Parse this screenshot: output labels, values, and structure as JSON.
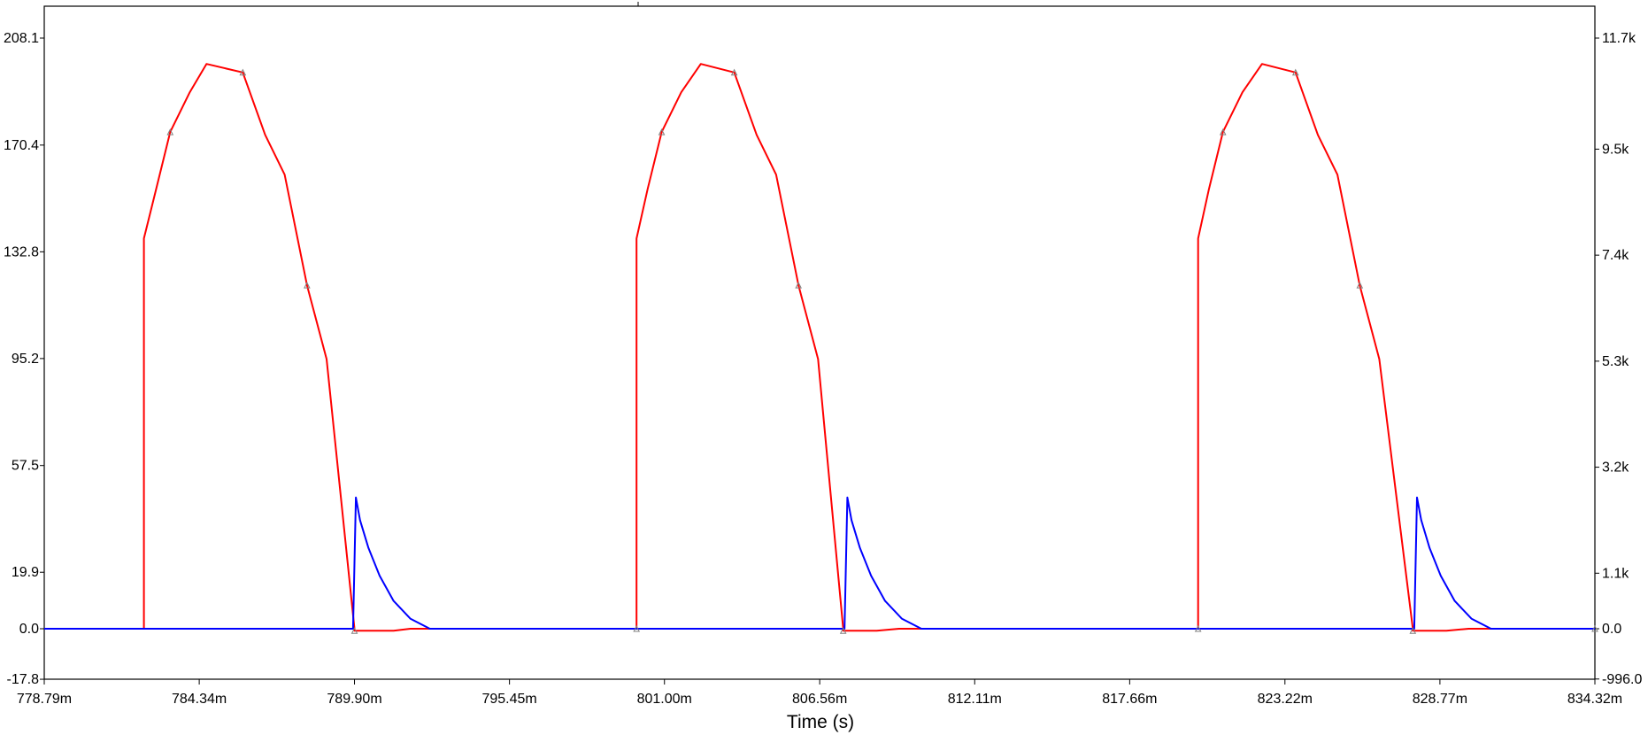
{
  "chart_data": {
    "type": "line",
    "xlabel": "Time (s)",
    "x_ticks": [
      "778.79m",
      "784.34m",
      "789.90m",
      "795.45m",
      "801.00m",
      "806.56m",
      "812.11m",
      "817.66m",
      "823.22m",
      "828.77m",
      "834.32m"
    ],
    "x_tick_values": [
      778.79,
      784.34,
      789.9,
      795.45,
      801.0,
      806.56,
      812.11,
      817.66,
      823.22,
      828.77,
      834.32
    ],
    "xlim": [
      778.79,
      834.32
    ],
    "x_unit": "ms",
    "left_axis": {
      "ticks": [
        "208.1",
        "170.4",
        "132.8",
        "95.2",
        "57.5",
        "19.9",
        "0.0",
        "-17.8"
      ],
      "tick_values": [
        208.1,
        170.4,
        132.8,
        95.2,
        57.5,
        19.9,
        0.0,
        -17.8
      ],
      "ylim": [
        -17.8,
        208.1
      ]
    },
    "right_axis": {
      "ticks": [
        "11.7k",
        "9.5k",
        "7.4k",
        "5.3k",
        "3.2k",
        "1.1k",
        "0.0",
        "-996.0"
      ],
      "tick_values": [
        11700,
        9500,
        7400,
        5300,
        3200,
        1100,
        0,
        -996
      ],
      "ylim": [
        -996,
        11700
      ]
    },
    "grid": false,
    "legend": "none",
    "series": [
      {
        "color": "#ff0000",
        "axis": "left",
        "x": [
          778.79,
          782.36,
          782.36,
          782.8,
          783.3,
          784.0,
          784.6,
          785.9,
          786.7,
          787.4,
          788.2,
          788.9,
          789.9,
          789.9,
          791.3,
          791.9,
          800.0,
          800.0,
          800.4,
          800.9,
          801.6,
          802.3,
          803.5,
          804.3,
          805.0,
          805.8,
          806.5,
          807.4,
          807.4,
          808.6,
          809.4,
          820.11,
          820.11,
          820.5,
          821.0,
          821.7,
          822.4,
          823.6,
          824.4,
          825.1,
          825.9,
          826.6,
          827.8,
          827.8,
          829.0,
          829.8,
          834.32
        ],
        "y": [
          0,
          0,
          137.5,
          155.0,
          175.0,
          189.0,
          199.0,
          196.0,
          174.0,
          160.0,
          121.0,
          95.0,
          0,
          -0.7,
          -0.7,
          0,
          0,
          137.5,
          155.0,
          175.0,
          189.0,
          199.0,
          196.0,
          174.0,
          160.0,
          121.0,
          95.0,
          0,
          -0.7,
          -0.7,
          0,
          0,
          137.5,
          155.0,
          175.0,
          189.0,
          199.0,
          196.0,
          174.0,
          160.0,
          121.0,
          95.0,
          0,
          -0.7,
          -0.7,
          0,
          0
        ]
      },
      {
        "color": "#0000ff",
        "axis": "right",
        "x": [
          778.79,
          789.85,
          789.95,
          790.1,
          790.4,
          790.8,
          791.3,
          791.9,
          792.6,
          800.0,
          807.45,
          807.55,
          807.7,
          808.0,
          808.4,
          808.9,
          809.5,
          810.2,
          820.0,
          827.85,
          827.95,
          828.1,
          828.4,
          828.8,
          829.3,
          829.9,
          830.6,
          834.32
        ],
        "y": [
          0,
          0,
          2600,
          2150,
          1600,
          1050,
          550,
          200,
          0,
          0,
          0,
          2600,
          2150,
          1600,
          1050,
          550,
          200,
          0,
          0,
          0,
          2600,
          2150,
          1600,
          1050,
          550,
          200,
          0,
          0
        ]
      }
    ]
  }
}
